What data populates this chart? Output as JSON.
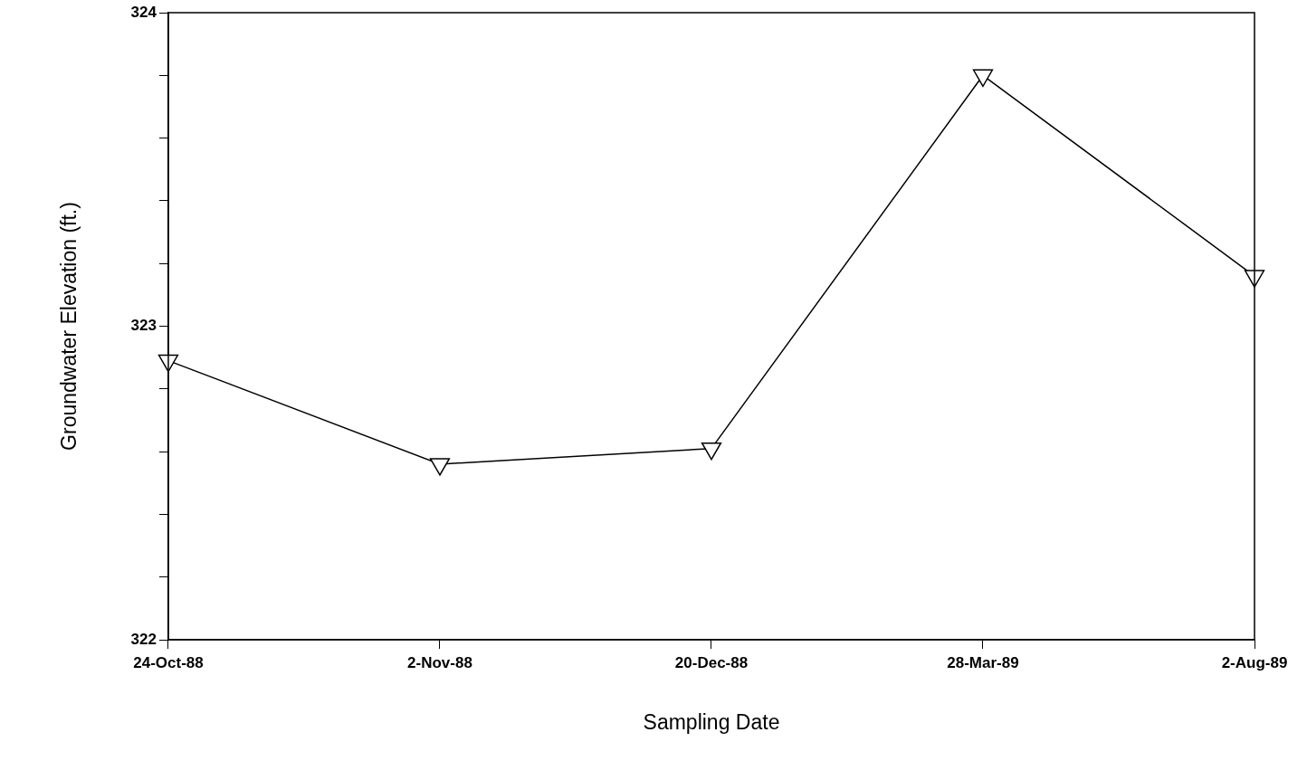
{
  "chart_data": {
    "type": "line",
    "xlabel": "Sampling Date",
    "ylabel": "Groundwater Elevation (ft.)",
    "categories": [
      "24-Oct-88",
      "2-Nov-88",
      "20-Dec-88",
      "28-Mar-89",
      "2-Aug-89"
    ],
    "values": [
      322.89,
      322.56,
      322.61,
      323.8,
      323.16
    ],
    "color": "#000000",
    "ylim": [
      322,
      324
    ],
    "yticks": [
      322,
      {
        "value": 322.2,
        "label": null
      },
      {
        "value": 322.4,
        "label": null
      },
      {
        "value": 322.6,
        "label": null
      },
      {
        "value": 322.8,
        "label": null
      },
      323,
      {
        "value": 323.2,
        "label": null
      },
      {
        "value": 323.4,
        "label": null
      },
      {
        "value": 323.6,
        "label": null
      },
      {
        "value": 323.8,
        "label": null
      },
      324
    ],
    "grid": false,
    "legend": false,
    "marker": "triangle",
    "line_style": "solid"
  }
}
